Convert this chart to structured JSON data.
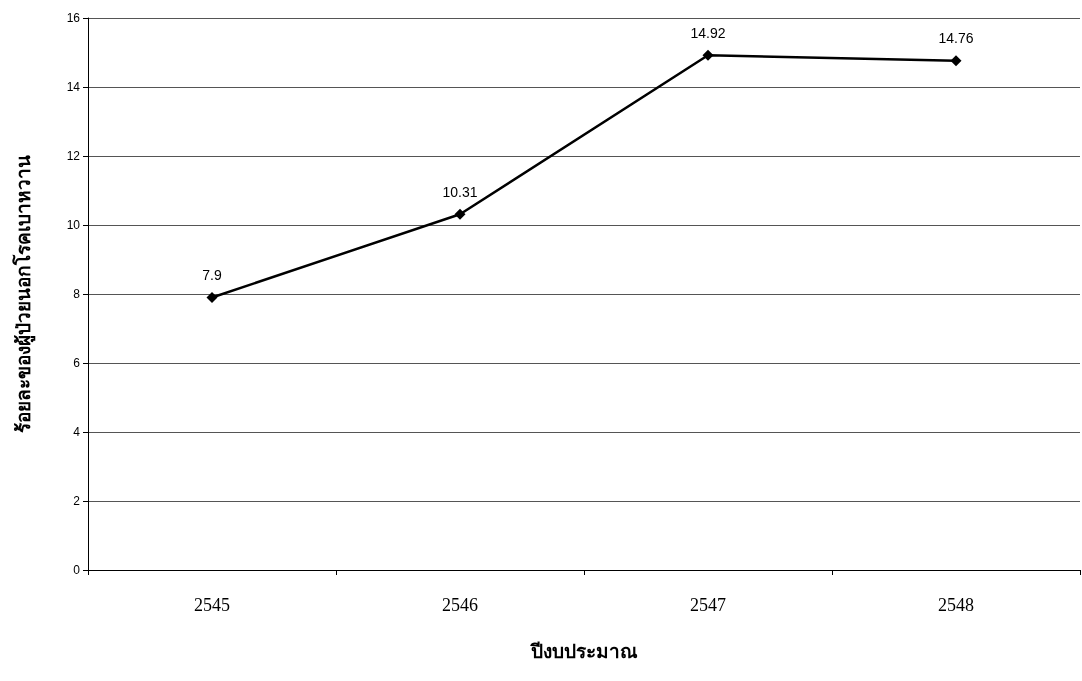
{
  "chart_data": {
    "type": "line",
    "xlabel": "ปีงบประมาณ",
    "ylabel": "ร้อยละของผู้ป่วยนอกโรคเบาหวาน",
    "categories": [
      "2545",
      "2546",
      "2547",
      "2548"
    ],
    "series": [
      {
        "color": "#000000",
        "values": [
          7.9,
          10.31,
          14.92,
          14.76
        ]
      }
    ],
    "ylim": [
      0,
      16
    ],
    "yticks": [
      0,
      2,
      4,
      6,
      8,
      10,
      12,
      14,
      16
    ],
    "grid": "y",
    "marker": "diamond",
    "line_style": "solid",
    "data_labels": true
  }
}
